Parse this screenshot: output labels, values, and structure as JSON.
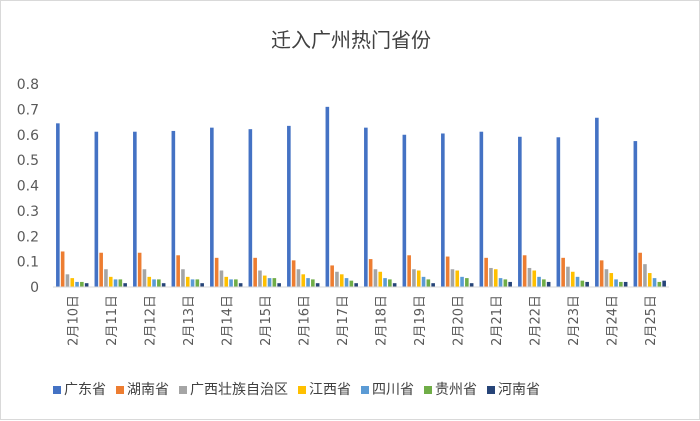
{
  "chart_data": {
    "type": "bar",
    "title": "迁入广州热门省份",
    "xlabel": "",
    "ylabel": "",
    "ylim": [
      0,
      0.8
    ],
    "yticks": [
      "0",
      "0.1",
      "0.2",
      "0.3",
      "0.4",
      "0.5",
      "0.6",
      "0.7",
      "0.8"
    ],
    "grid": false,
    "legend_position": "bottom",
    "categories": [
      "2月10日",
      "2月11日",
      "2月12日",
      "2月13日",
      "2月14日",
      "2月15日",
      "2月16日",
      "2月17日",
      "2月18日",
      "2月19日",
      "2月20日",
      "2月21日",
      "2月22日",
      "2月23日",
      "2月24日",
      "2月25日"
    ],
    "series": [
      {
        "name": "广东省",
        "color": "#4472C4",
        "values": [
          0.645,
          0.612,
          0.612,
          0.615,
          0.628,
          0.622,
          0.635,
          0.71,
          0.628,
          0.6,
          0.605,
          0.612,
          0.592,
          0.59,
          0.667,
          0.575
        ]
      },
      {
        "name": "湖南省",
        "color": "#ED7D31",
        "values": [
          0.14,
          0.135,
          0.135,
          0.125,
          0.115,
          0.115,
          0.105,
          0.085,
          0.11,
          0.125,
          0.12,
          0.115,
          0.125,
          0.115,
          0.105,
          0.135
        ]
      },
      {
        "name": "广西壮族自治区",
        "color": "#A5A5A5",
        "values": [
          0.05,
          0.07,
          0.07,
          0.07,
          0.065,
          0.065,
          0.07,
          0.06,
          0.07,
          0.07,
          0.07,
          0.075,
          0.075,
          0.08,
          0.07,
          0.09
        ]
      },
      {
        "name": "江西省",
        "color": "#FFC000",
        "values": [
          0.035,
          0.04,
          0.04,
          0.04,
          0.04,
          0.045,
          0.05,
          0.05,
          0.06,
          0.065,
          0.065,
          0.07,
          0.065,
          0.06,
          0.055,
          0.055
        ]
      },
      {
        "name": "四川省",
        "color": "#5B9BD5",
        "values": [
          0.02,
          0.03,
          0.03,
          0.03,
          0.03,
          0.035,
          0.035,
          0.035,
          0.035,
          0.04,
          0.04,
          0.035,
          0.04,
          0.04,
          0.03,
          0.035
        ]
      },
      {
        "name": "贵州省",
        "color": "#70AD47",
        "values": [
          0.02,
          0.03,
          0.03,
          0.03,
          0.03,
          0.035,
          0.03,
          0.025,
          0.03,
          0.03,
          0.035,
          0.03,
          0.03,
          0.025,
          0.02,
          0.02
        ]
      },
      {
        "name": "河南省",
        "color": "#264478",
        "values": [
          0.015,
          0.015,
          0.015,
          0.015,
          0.015,
          0.015,
          0.015,
          0.015,
          0.015,
          0.015,
          0.015,
          0.02,
          0.02,
          0.02,
          0.02,
          0.025
        ]
      }
    ]
  }
}
